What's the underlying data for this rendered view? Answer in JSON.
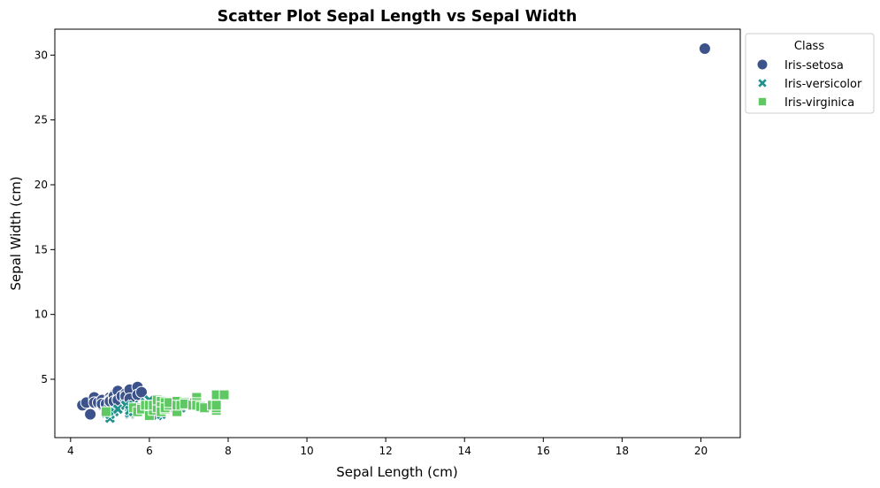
{
  "chart_data": {
    "type": "scatter",
    "title": "Scatter Plot Sepal Length vs Sepal Width",
    "xlabel": "Sepal Length (cm)",
    "ylabel": "Sepal Width (cm)",
    "xlim": [
      3.6,
      21.0
    ],
    "ylim": [
      0.5,
      32.0
    ],
    "xticks": [
      4,
      6,
      8,
      10,
      12,
      14,
      16,
      18,
      20
    ],
    "yticks": [
      5,
      10,
      15,
      20,
      25,
      30
    ],
    "grid": false,
    "legend": {
      "title": "Class",
      "placement": "outside-top-right"
    },
    "series": [
      {
        "name": "Iris-setosa",
        "marker": "circle",
        "color": "#3b528b",
        "points": [
          [
            4.3,
            3.0
          ],
          [
            4.4,
            3.2
          ],
          [
            4.5,
            2.3
          ],
          [
            4.6,
            3.4
          ],
          [
            4.6,
            3.6
          ],
          [
            4.6,
            3.2
          ],
          [
            4.7,
            3.2
          ],
          [
            4.8,
            3.4
          ],
          [
            4.8,
            3.0
          ],
          [
            4.8,
            3.1
          ],
          [
            4.9,
            3.0
          ],
          [
            4.9,
            3.1
          ],
          [
            5.0,
            3.6
          ],
          [
            5.0,
            3.4
          ],
          [
            5.0,
            3.0
          ],
          [
            5.0,
            3.3
          ],
          [
            5.1,
            3.5
          ],
          [
            5.1,
            3.8
          ],
          [
            5.1,
            3.7
          ],
          [
            5.1,
            3.3
          ],
          [
            5.2,
            3.5
          ],
          [
            5.2,
            4.1
          ],
          [
            5.2,
            3.4
          ],
          [
            5.3,
            3.7
          ],
          [
            5.4,
            3.9
          ],
          [
            5.4,
            3.4
          ],
          [
            5.4,
            3.7
          ],
          [
            5.5,
            4.2
          ],
          [
            5.5,
            3.5
          ],
          [
            5.7,
            4.4
          ],
          [
            5.7,
            3.8
          ],
          [
            5.8,
            4.0
          ],
          [
            20.1,
            30.5
          ]
        ]
      },
      {
        "name": "Iris-versicolor",
        "marker": "x",
        "color": "#21918c",
        "points": [
          [
            4.9,
            2.4
          ],
          [
            5.0,
            2.0
          ],
          [
            5.0,
            2.3
          ],
          [
            5.1,
            2.5
          ],
          [
            5.2,
            2.7
          ],
          [
            5.4,
            3.0
          ],
          [
            5.5,
            2.3
          ],
          [
            5.5,
            2.4
          ],
          [
            5.5,
            2.6
          ],
          [
            5.6,
            2.9
          ],
          [
            5.6,
            3.0
          ],
          [
            5.6,
            2.5
          ],
          [
            5.7,
            2.8
          ],
          [
            5.7,
            2.6
          ],
          [
            5.8,
            2.7
          ],
          [
            5.9,
            3.0
          ],
          [
            5.9,
            3.2
          ],
          [
            6.0,
            2.2
          ],
          [
            6.0,
            2.9
          ],
          [
            6.0,
            3.4
          ],
          [
            6.1,
            2.8
          ],
          [
            6.2,
            2.2
          ],
          [
            6.3,
            3.3
          ],
          [
            6.3,
            2.3
          ],
          [
            6.4,
            3.2
          ],
          [
            6.5,
            2.8
          ],
          [
            6.6,
            2.9
          ],
          [
            6.7,
            3.1
          ],
          [
            6.8,
            2.8
          ],
          [
            6.9,
            3.1
          ],
          [
            7.0,
            3.2
          ]
        ]
      },
      {
        "name": "Iris-virginica",
        "marker": "square",
        "color": "#5ec962",
        "points": [
          [
            4.9,
            2.5
          ],
          [
            5.6,
            2.8
          ],
          [
            5.7,
            2.5
          ],
          [
            5.8,
            2.8
          ],
          [
            5.8,
            2.7
          ],
          [
            5.9,
            3.0
          ],
          [
            6.0,
            2.2
          ],
          [
            6.0,
            3.0
          ],
          [
            6.1,
            2.6
          ],
          [
            6.1,
            3.0
          ],
          [
            6.2,
            2.8
          ],
          [
            6.2,
            3.4
          ],
          [
            6.3,
            3.3
          ],
          [
            6.3,
            2.9
          ],
          [
            6.3,
            2.5
          ],
          [
            6.4,
            2.7
          ],
          [
            6.4,
            3.2
          ],
          [
            6.4,
            2.8
          ],
          [
            6.5,
            3.0
          ],
          [
            6.5,
            3.2
          ],
          [
            6.7,
            2.5
          ],
          [
            6.7,
            3.3
          ],
          [
            6.7,
            3.0
          ],
          [
            6.8,
            3.0
          ],
          [
            6.9,
            3.2
          ],
          [
            6.9,
            3.1
          ],
          [
            7.1,
            3.0
          ],
          [
            7.2,
            3.6
          ],
          [
            7.2,
            3.2
          ],
          [
            7.2,
            3.0
          ],
          [
            7.3,
            2.9
          ],
          [
            7.4,
            2.8
          ],
          [
            7.6,
            3.0
          ],
          [
            7.7,
            3.8
          ],
          [
            7.7,
            2.6
          ],
          [
            7.7,
            2.8
          ],
          [
            7.7,
            3.0
          ],
          [
            7.9,
            3.8
          ]
        ]
      }
    ]
  }
}
